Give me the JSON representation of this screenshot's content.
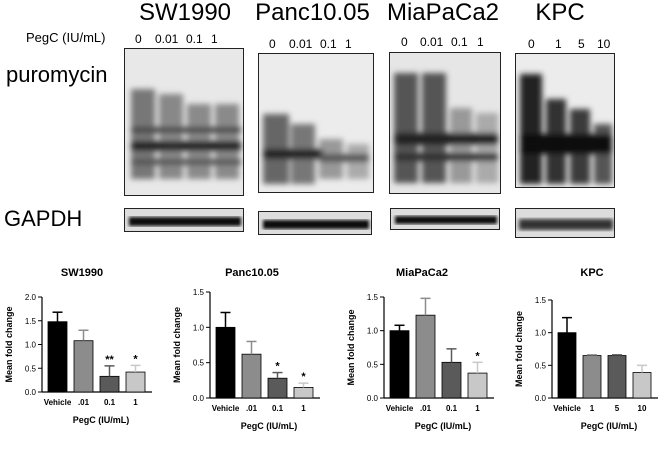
{
  "figure": {
    "cell_lines": [
      {
        "name": "SW1990",
        "concentrations": [
          "0",
          "0.01",
          "0.1",
          "1"
        ]
      },
      {
        "name": "Panc10.05",
        "concentrations": [
          "0",
          "0.01",
          "0.1",
          "1"
        ]
      },
      {
        "name": "MiaPaCa2",
        "concentrations": [
          "0",
          "0.01",
          "0.1",
          "1"
        ]
      },
      {
        "name": "KPC",
        "concentrations": [
          "0",
          "1",
          "5",
          "10"
        ]
      }
    ],
    "dose_label": "PegC (IU/mL)",
    "row_labels": {
      "puromycin": "puromycin",
      "gapdh": "GAPDH"
    }
  },
  "chart_data": [
    {
      "type": "bar",
      "title": "SW1990",
      "xlabel": "PegC (IU/mL)",
      "ylabel": "Mean fold change",
      "categories": [
        "Vehicle",
        ".01",
        "0.1",
        "1"
      ],
      "values": [
        1.48,
        1.08,
        0.33,
        0.42
      ],
      "errors": [
        0.2,
        0.22,
        0.22,
        0.14
      ],
      "significance": [
        "",
        "",
        "**",
        "*"
      ],
      "ylim": [
        0,
        2.0
      ],
      "yticks": [
        "0.0",
        "0.5",
        "1.0",
        "1.5",
        "2.0"
      ],
      "bar_colors": [
        "#000000",
        "#8c8c8c",
        "#5a5a5a",
        "#c8c8c8"
      ]
    },
    {
      "type": "bar",
      "title": "Panc10.05",
      "xlabel": "PegC (IU/mL)",
      "ylabel": "Mean fold change",
      "categories": [
        "Vehicle",
        ".01",
        "0.1",
        "1"
      ],
      "values": [
        1.0,
        0.62,
        0.28,
        0.15
      ],
      "errors": [
        0.21,
        0.18,
        0.08,
        0.06
      ],
      "significance": [
        "",
        "",
        "*",
        "*"
      ],
      "ylim": [
        0,
        1.5
      ],
      "yticks": [
        "0.0",
        "0.5",
        "1.0",
        "1.5"
      ],
      "bar_colors": [
        "#000000",
        "#8c8c8c",
        "#5a5a5a",
        "#c8c8c8"
      ]
    },
    {
      "type": "bar",
      "title": "MiaPaCa2",
      "xlabel": "PegC (IU/mL)",
      "ylabel": "Mean fold change",
      "categories": [
        "Vehicle",
        ".01",
        "0.1",
        "1"
      ],
      "values": [
        1.0,
        1.23,
        0.53,
        0.37
      ],
      "errors": [
        0.08,
        0.25,
        0.2,
        0.16
      ],
      "significance": [
        "",
        "",
        "",
        "*"
      ],
      "ylim": [
        0,
        1.5
      ],
      "yticks": [
        "0.0",
        "0.5",
        "1.0",
        "1.5"
      ],
      "bar_colors": [
        "#000000",
        "#8c8c8c",
        "#5a5a5a",
        "#c8c8c8"
      ]
    },
    {
      "type": "bar",
      "title": "KPC",
      "xlabel": "PegC (IU/mL)",
      "ylabel": "Mean fold change",
      "categories": [
        "Vehicle",
        "1",
        "5",
        "10"
      ],
      "values": [
        1.0,
        0.65,
        0.65,
        0.39
      ],
      "errors": [
        0.23,
        0.01,
        0.01,
        0.11
      ],
      "significance": [
        "",
        "",
        "",
        ""
      ],
      "ylim": [
        0,
        1.5
      ],
      "yticks": [
        "0.0",
        "0.5",
        "1.0",
        "1.5"
      ],
      "bar_colors": [
        "#000000",
        "#8c8c8c",
        "#5a5a5a",
        "#c8c8c8"
      ]
    }
  ]
}
